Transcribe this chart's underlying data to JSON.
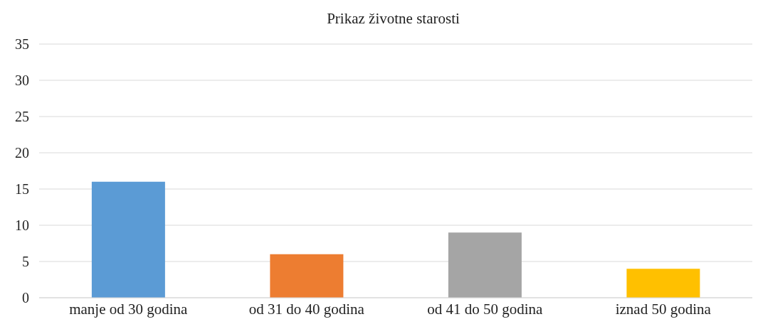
{
  "chart_data": {
    "type": "bar",
    "title": "Prikaz životne starosti",
    "categories": [
      "manje od 30 godina",
      "od 31 do 40 godina",
      "od 41 do 50 godina",
      "iznad 50 godina"
    ],
    "values": [
      16,
      6,
      9,
      4
    ],
    "colors": [
      "#5b9bd5",
      "#ed7d31",
      "#a5a5a5",
      "#ffc000"
    ],
    "ylim": [
      0,
      35
    ],
    "yticks": [
      0,
      5,
      10,
      15,
      20,
      25,
      30,
      35
    ],
    "grid": "y"
  }
}
